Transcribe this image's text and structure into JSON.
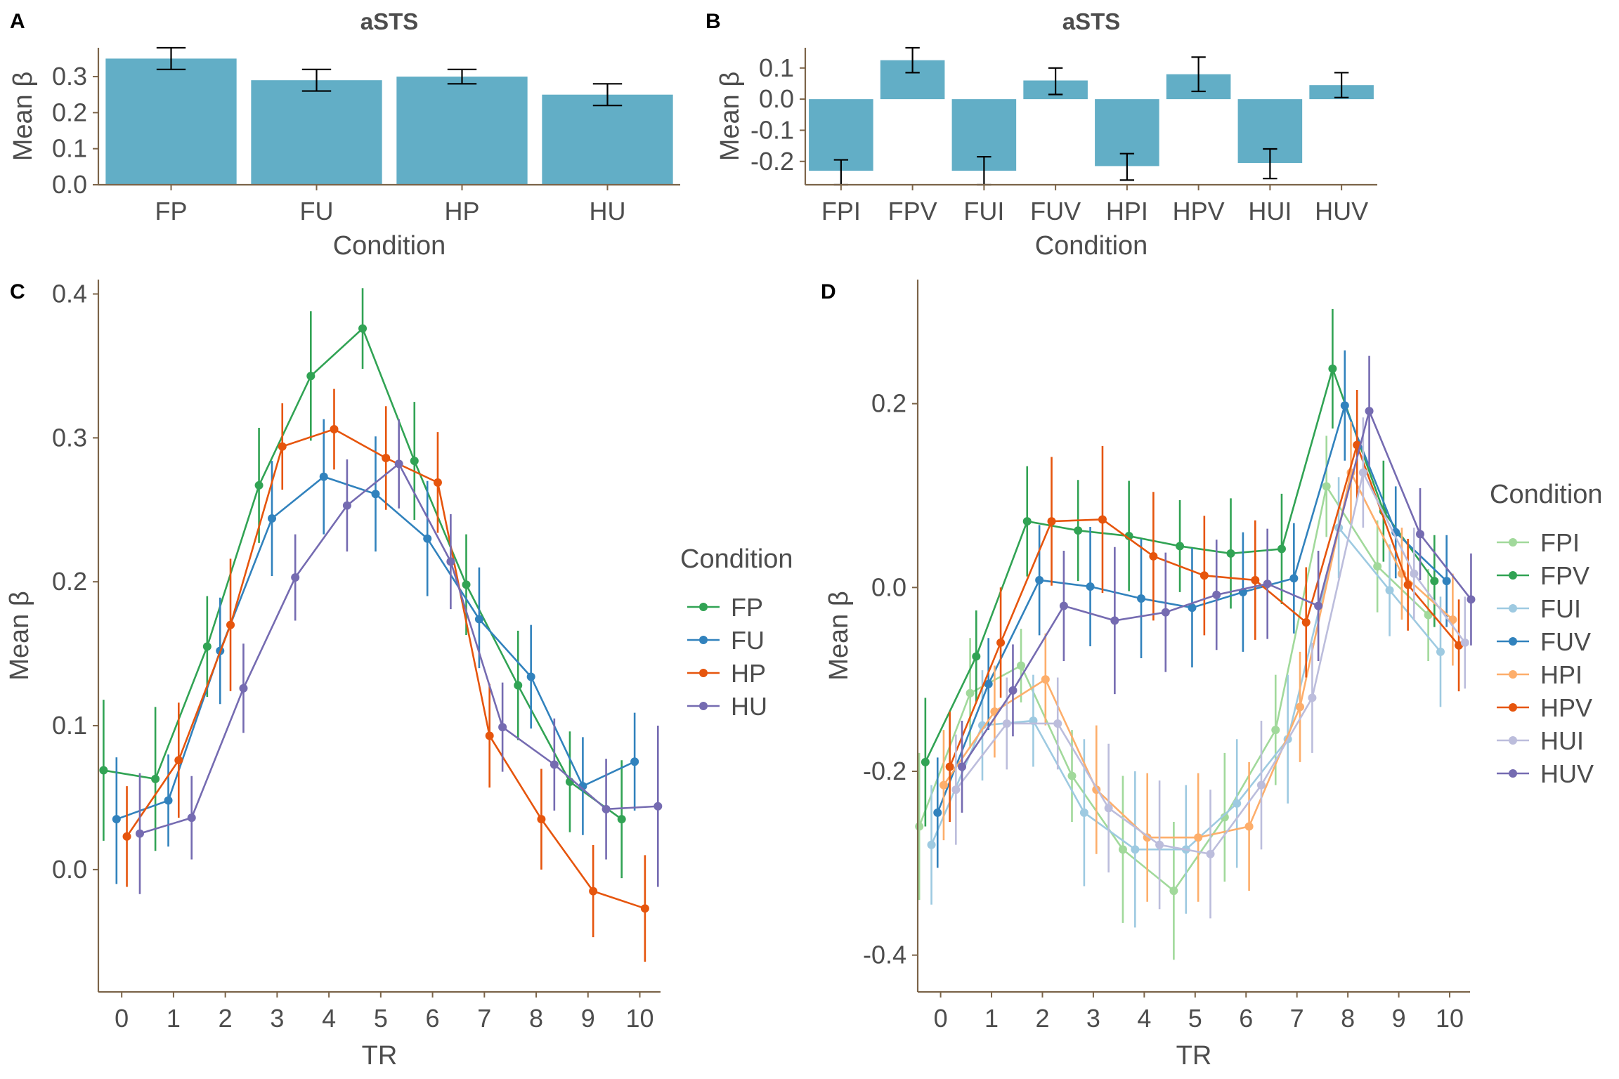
{
  "colors": {
    "axis": "#7b6449",
    "bar": "#62aec6",
    "text": "#4d4d4d"
  },
  "chart_data": [
    {
      "panel": "A",
      "type": "bar",
      "title": "aSTS",
      "xlabel": "Condition",
      "ylabel": "Mean β",
      "categories": [
        "FP",
        "FU",
        "HP",
        "HU"
      ],
      "values": [
        0.35,
        0.29,
        0.3,
        0.25
      ],
      "errors": [
        [
          0.32,
          0.38
        ],
        [
          0.26,
          0.32
        ],
        [
          0.28,
          0.32
        ],
        [
          0.22,
          0.28
        ]
      ],
      "ylim": [
        0.0,
        0.38
      ],
      "yticks": [
        0.0,
        0.1,
        0.2,
        0.3
      ],
      "ytick_labels": [
        "0.0",
        "0.1",
        "0.2",
        "0.3"
      ],
      "bar_color": "#62aec6"
    },
    {
      "panel": "B",
      "type": "bar",
      "title": "aSTS",
      "xlabel": "Condition",
      "ylabel": "Mean β",
      "categories": [
        "FPI",
        "FPV",
        "FUI",
        "FUV",
        "HPI",
        "HPV",
        "HUI",
        "HUV"
      ],
      "values": [
        -0.23,
        0.125,
        -0.23,
        0.06,
        -0.215,
        0.08,
        -0.205,
        0.045
      ],
      "errors": [
        [
          -0.275,
          -0.195
        ],
        [
          0.085,
          0.165
        ],
        [
          -0.275,
          -0.185
        ],
        [
          0.015,
          0.1
        ],
        [
          -0.26,
          -0.175
        ],
        [
          0.025,
          0.135
        ],
        [
          -0.255,
          -0.16
        ],
        [
          0.005,
          0.085
        ]
      ],
      "ylim": [
        -0.275,
        0.165
      ],
      "yticks": [
        -0.2,
        -0.1,
        0.0,
        0.1
      ],
      "ytick_labels": [
        "-0.2",
        "-0.1",
        "0.0",
        "0.1"
      ],
      "bar_color": "#62aec6"
    },
    {
      "panel": "C",
      "type": "line",
      "xlabel": "TR",
      "ylabel": "Mean β",
      "xlim": [
        -0.45,
        10.4
      ],
      "ylim": [
        -0.085,
        0.41
      ],
      "xticks": [
        0,
        1,
        2,
        3,
        4,
        5,
        6,
        7,
        8,
        9,
        10
      ],
      "xtick_labels": [
        "0",
        "1",
        "2",
        "3",
        "4",
        "5",
        "6",
        "7",
        "8",
        "9",
        "10"
      ],
      "yticks": [
        0.0,
        0.1,
        0.2,
        0.3,
        0.4
      ],
      "ytick_labels": [
        "0.0",
        "0.1",
        "0.2",
        "0.3",
        "0.4"
      ],
      "legend_title": "Condition",
      "legend_position": "right",
      "series": [
        {
          "name": "FP",
          "color": "#31a354",
          "dodge": -0.35,
          "values": [
            0.069,
            0.063,
            0.155,
            0.267,
            0.343,
            0.376,
            0.284,
            0.198,
            0.128,
            0.061,
            0.035
          ],
          "errors": [
            [
              0.02,
              0.118
            ],
            [
              0.013,
              0.113
            ],
            [
              0.12,
              0.19
            ],
            [
              0.227,
              0.307
            ],
            [
              0.298,
              0.388
            ],
            [
              0.348,
              0.404
            ],
            [
              0.243,
              0.325
            ],
            [
              0.163,
              0.233
            ],
            [
              0.09,
              0.166
            ],
            [
              0.026,
              0.096
            ],
            [
              -0.006,
              0.076
            ]
          ]
        },
        {
          "name": "FU",
          "color": "#3182bd",
          "dodge": -0.1,
          "values": [
            0.035,
            0.048,
            0.152,
            0.244,
            0.273,
            0.261,
            0.23,
            0.174,
            0.134,
            0.058,
            0.075
          ],
          "errors": [
            [
              -0.01,
              0.078
            ],
            [
              0.016,
              0.08
            ],
            [
              0.115,
              0.189
            ],
            [
              0.204,
              0.284
            ],
            [
              0.233,
              0.313
            ],
            [
              0.221,
              0.301
            ],
            [
              0.19,
              0.27
            ],
            [
              0.14,
              0.21
            ],
            [
              0.098,
              0.17
            ],
            [
              0.024,
              0.092
            ],
            [
              0.041,
              0.109
            ]
          ]
        },
        {
          "name": "HP",
          "color": "#e6550d",
          "dodge": 0.1,
          "values": [
            0.023,
            0.076,
            0.17,
            0.294,
            0.306,
            0.286,
            0.269,
            0.093,
            0.035,
            -0.015,
            -0.027
          ],
          "errors": [
            [
              -0.012,
              0.058
            ],
            [
              0.036,
              0.116
            ],
            [
              0.124,
              0.216
            ],
            [
              0.264,
              0.324
            ],
            [
              0.278,
              0.334
            ],
            [
              0.25,
              0.322
            ],
            [
              0.234,
              0.304
            ],
            [
              0.057,
              0.129
            ],
            [
              0.0,
              0.07
            ],
            [
              -0.047,
              0.017
            ],
            [
              -0.064,
              0.01
            ]
          ]
        },
        {
          "name": "HU",
          "color": "#756bb1",
          "dodge": 0.35,
          "values": [
            0.025,
            0.036,
            0.126,
            0.203,
            0.253,
            0.282,
            0.214,
            0.099,
            0.073,
            0.042,
            0.044
          ],
          "errors": [
            [
              -0.017,
              0.067
            ],
            [
              0.007,
              0.065
            ],
            [
              0.095,
              0.157
            ],
            [
              0.173,
              0.233
            ],
            [
              0.221,
              0.285
            ],
            [
              0.251,
              0.313
            ],
            [
              0.181,
              0.247
            ],
            [
              0.068,
              0.13
            ],
            [
              0.041,
              0.105
            ],
            [
              0.007,
              0.077
            ],
            [
              -0.012,
              0.1
            ]
          ]
        }
      ]
    },
    {
      "panel": "D",
      "type": "line",
      "xlabel": "TR",
      "ylabel": "Mean β",
      "xlim": [
        -0.45,
        10.4
      ],
      "ylim": [
        -0.44,
        0.335
      ],
      "xticks": [
        0,
        1,
        2,
        3,
        4,
        5,
        6,
        7,
        8,
        9,
        10
      ],
      "xtick_labels": [
        "0",
        "1",
        "2",
        "3",
        "4",
        "5",
        "6",
        "7",
        "8",
        "9",
        "10"
      ],
      "yticks": [
        -0.4,
        -0.2,
        0.0,
        0.2
      ],
      "ytick_labels": [
        "-0.4",
        "-0.2",
        "0.0",
        "0.2"
      ],
      "legend_title": "Condition",
      "legend_position": "right",
      "series": [
        {
          "name": "FPI",
          "color": "#a1d99b",
          "dodge": -0.42,
          "values": [
            -0.26,
            -0.115,
            -0.085,
            -0.205,
            -0.285,
            -0.33,
            -0.25,
            -0.155,
            0.11,
            0.023,
            -0.03
          ],
          "errors": [
            [
              -0.34,
              -0.18
            ],
            [
              -0.175,
              -0.055
            ],
            [
              -0.125,
              -0.045
            ],
            [
              -0.255,
              -0.155
            ],
            [
              -0.365,
              -0.205
            ],
            [
              -0.405,
              -0.255
            ],
            [
              -0.32,
              -0.18
            ],
            [
              -0.215,
              -0.095
            ],
            [
              0.055,
              0.165
            ],
            [
              -0.027,
              0.073
            ],
            [
              -0.08,
              0.02
            ]
          ]
        },
        {
          "name": "FPV",
          "color": "#31a354",
          "dodge": -0.3,
          "values": [
            -0.19,
            -0.075,
            0.072,
            0.062,
            0.056,
            0.045,
            0.037,
            0.042,
            0.238,
            0.083,
            0.007
          ],
          "errors": [
            [
              -0.26,
              -0.12
            ],
            [
              -0.125,
              -0.025
            ],
            [
              0.012,
              0.132
            ],
            [
              0.007,
              0.117
            ],
            [
              -0.004,
              0.116
            ],
            [
              -0.005,
              0.095
            ],
            [
              -0.023,
              0.097
            ],
            [
              -0.018,
              0.102
            ],
            [
              0.173,
              0.303
            ],
            [
              0.028,
              0.138
            ],
            [
              -0.043,
              0.057
            ]
          ]
        },
        {
          "name": "FUI",
          "color": "#9ecae1",
          "dodge": -0.18,
          "values": [
            -0.28,
            -0.15,
            -0.145,
            -0.245,
            -0.285,
            -0.285,
            -0.235,
            -0.165,
            0.065,
            -0.003,
            -0.07
          ],
          "errors": [
            [
              -0.345,
              -0.215
            ],
            [
              -0.21,
              -0.09
            ],
            [
              -0.195,
              -0.095
            ],
            [
              -0.325,
              -0.165
            ],
            [
              -0.37,
              -0.2
            ],
            [
              -0.355,
              -0.215
            ],
            [
              -0.305,
              -0.165
            ],
            [
              -0.235,
              -0.095
            ],
            [
              0.01,
              0.12
            ],
            [
              -0.053,
              0.047
            ],
            [
              -0.13,
              -0.01
            ]
          ]
        },
        {
          "name": "FUV",
          "color": "#3182bd",
          "dodge": -0.06,
          "values": [
            -0.245,
            -0.105,
            0.008,
            0.001,
            -0.012,
            -0.022,
            -0.005,
            0.01,
            0.198,
            0.06,
            0.007
          ],
          "errors": [
            [
              -0.305,
              -0.185
            ],
            [
              -0.155,
              -0.055
            ],
            [
              -0.052,
              0.068
            ],
            [
              -0.064,
              0.066
            ],
            [
              -0.077,
              0.053
            ],
            [
              -0.087,
              0.043
            ],
            [
              -0.07,
              0.06
            ],
            [
              -0.05,
              0.07
            ],
            [
              0.138,
              0.258
            ],
            [
              0.01,
              0.11
            ],
            [
              -0.043,
              0.057
            ]
          ]
        },
        {
          "name": "HPI",
          "color": "#fdae6b",
          "dodge": 0.06,
          "values": [
            -0.215,
            -0.135,
            -0.1,
            -0.22,
            -0.272,
            -0.272,
            -0.26,
            -0.13,
            0.125,
            0.015,
            -0.035
          ],
          "errors": [
            [
              -0.275,
              -0.155
            ],
            [
              -0.185,
              -0.085
            ],
            [
              -0.15,
              -0.05
            ],
            [
              -0.29,
              -0.15
            ],
            [
              -0.342,
              -0.202
            ],
            [
              -0.342,
              -0.202
            ],
            [
              -0.33,
              -0.19
            ],
            [
              -0.19,
              -0.07
            ],
            [
              0.07,
              0.18
            ],
            [
              -0.035,
              0.065
            ],
            [
              -0.085,
              0.015
            ]
          ]
        },
        {
          "name": "HPV",
          "color": "#e6550d",
          "dodge": 0.18,
          "values": [
            -0.195,
            -0.06,
            0.072,
            0.074,
            0.034,
            0.013,
            0.008,
            -0.038,
            0.155,
            0.003,
            -0.063
          ],
          "errors": [
            [
              -0.255,
              -0.135
            ],
            [
              -0.12,
              0.0
            ],
            [
              0.002,
              0.142
            ],
            [
              -0.006,
              0.154
            ],
            [
              -0.036,
              0.104
            ],
            [
              -0.052,
              0.078
            ],
            [
              -0.057,
              0.073
            ],
            [
              -0.098,
              0.022
            ],
            [
              0.095,
              0.215
            ],
            [
              -0.047,
              0.053
            ],
            [
              -0.113,
              -0.013
            ]
          ]
        },
        {
          "name": "HUI",
          "color": "#bcbddc",
          "dodge": 0.3,
          "values": [
            -0.22,
            -0.148,
            -0.148,
            -0.24,
            -0.28,
            -0.29,
            -0.215,
            -0.12,
            0.125,
            0.015,
            -0.06
          ],
          "errors": [
            [
              -0.28,
              -0.16
            ],
            [
              -0.198,
              -0.098
            ],
            [
              -0.198,
              -0.098
            ],
            [
              -0.31,
              -0.17
            ],
            [
              -0.35,
              -0.21
            ],
            [
              -0.36,
              -0.22
            ],
            [
              -0.285,
              -0.145
            ],
            [
              -0.18,
              -0.06
            ],
            [
              0.065,
              0.185
            ],
            [
              -0.035,
              0.065
            ],
            [
              -0.11,
              -0.01
            ]
          ]
        },
        {
          "name": "HUV",
          "color": "#756bb1",
          "dodge": 0.42,
          "values": [
            -0.195,
            -0.112,
            -0.02,
            -0.036,
            -0.027,
            -0.008,
            0.004,
            -0.02,
            0.192,
            0.058,
            -0.013
          ],
          "errors": [
            [
              -0.245,
              -0.145
            ],
            [
              -0.162,
              -0.062
            ],
            [
              -0.08,
              0.04
            ],
            [
              -0.116,
              0.044
            ],
            [
              -0.092,
              0.038
            ],
            [
              -0.068,
              0.052
            ],
            [
              -0.056,
              0.064
            ],
            [
              -0.08,
              0.04
            ],
            [
              0.132,
              0.252
            ],
            [
              0.008,
              0.108
            ],
            [
              -0.063,
              0.037
            ]
          ]
        }
      ]
    }
  ]
}
